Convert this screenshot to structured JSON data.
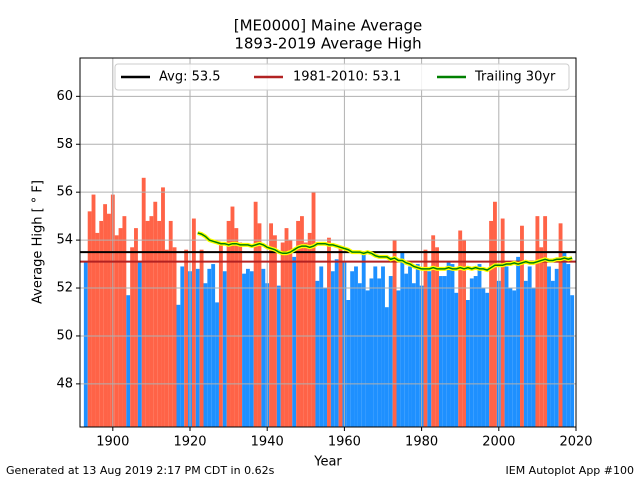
{
  "chart_data": {
    "type": "bar",
    "title": "[ME0000] Maine Average",
    "subtitle": "1893-2019 Average High",
    "ylabel": "Average High [ ° F]",
    "xlabel": "Year",
    "footer_left": "Generated at 13 Aug 2019 2:17 PM CDT in 0.62s",
    "footer_right": "IEM Autoplot App #100",
    "xlim": [
      1891.5,
      2020
    ],
    "xticks": [
      1900,
      1920,
      1940,
      1960,
      1980,
      2000,
      2020
    ],
    "ylim": [
      46.2,
      61.6
    ],
    "yticks": [
      48,
      50,
      52,
      54,
      56,
      58,
      60
    ],
    "grid": true,
    "legend": "upper center",
    "above_color": "#ff6347",
    "below_color": "#1e90ff",
    "x": [
      1893,
      1894,
      1895,
      1896,
      1897,
      1898,
      1899,
      1900,
      1901,
      1902,
      1903,
      1904,
      1905,
      1906,
      1907,
      1908,
      1909,
      1910,
      1911,
      1912,
      1913,
      1914,
      1915,
      1916,
      1917,
      1918,
      1919,
      1920,
      1921,
      1922,
      1923,
      1924,
      1925,
      1926,
      1927,
      1928,
      1929,
      1930,
      1931,
      1932,
      1933,
      1934,
      1935,
      1936,
      1937,
      1938,
      1939,
      1940,
      1941,
      1942,
      1943,
      1944,
      1945,
      1946,
      1947,
      1948,
      1949,
      1950,
      1951,
      1952,
      1953,
      1954,
      1955,
      1956,
      1957,
      1958,
      1959,
      1960,
      1961,
      1962,
      1963,
      1964,
      1965,
      1966,
      1967,
      1968,
      1969,
      1970,
      1971,
      1972,
      1973,
      1974,
      1975,
      1976,
      1977,
      1978,
      1979,
      1980,
      1981,
      1982,
      1983,
      1984,
      1985,
      1986,
      1987,
      1988,
      1989,
      1990,
      1991,
      1992,
      1993,
      1994,
      1995,
      1996,
      1997,
      1998,
      1999,
      2000,
      2001,
      2002,
      2003,
      2004,
      2005,
      2006,
      2007,
      2008,
      2009,
      2010,
      2011,
      2012,
      2013,
      2014,
      2015,
      2016,
      2017,
      2018,
      2019
    ],
    "values": [
      53.1,
      55.2,
      55.9,
      54.3,
      54.8,
      55.5,
      55.1,
      55.9,
      54.2,
      54.5,
      55.0,
      51.7,
      53.7,
      54.5,
      53.1,
      56.6,
      54.8,
      55.0,
      55.6,
      54.8,
      56.2,
      53.6,
      54.8,
      53.7,
      51.3,
      52.9,
      53.6,
      52.7,
      54.9,
      52.8,
      53.6,
      52.2,
      52.8,
      53.0,
      51.4,
      53.9,
      52.7,
      54.8,
      55.4,
      54.5,
      53.9,
      52.6,
      52.8,
      52.7,
      55.6,
      54.7,
      52.8,
      52.2,
      54.7,
      54.2,
      52.1,
      53.9,
      54.5,
      54.0,
      53.3,
      54.8,
      55.0,
      53.9,
      54.3,
      56.0,
      52.3,
      52.9,
      52.0,
      54.1,
      52.7,
      53.2,
      53.7,
      53.1,
      51.5,
      52.7,
      52.9,
      52.2,
      53.4,
      51.9,
      52.4,
      52.9,
      52.4,
      52.9,
      51.2,
      52.5,
      54.0,
      51.9,
      53.5,
      52.6,
      52.9,
      52.2,
      53.0,
      52.1,
      53.6,
      52.7,
      54.2,
      53.7,
      52.5,
      52.5,
      53.1,
      53.0,
      51.8,
      54.4,
      54.0,
      51.5,
      52.4,
      52.5,
      53.0,
      52.0,
      51.8,
      54.8,
      55.6,
      52.3,
      54.9,
      52.9,
      52.0,
      51.9,
      53.3,
      54.6,
      52.3,
      52.9,
      52.0,
      55.0,
      53.7,
      55.0,
      52.9,
      52.3,
      52.8,
      54.7,
      53.5,
      53.0,
      51.7
    ],
    "lines": [
      {
        "name": "Avg: 53.5",
        "value": 53.5,
        "color": "#000000"
      },
      {
        "name": "1981-2010: 53.1",
        "value": 53.1,
        "color": "#b22222"
      }
    ],
    "trailing": {
      "name": "Trailing 30yr",
      "color": "#008000",
      "outline": "#ffff00",
      "x": [
        1922,
        1923,
        1924,
        1925,
        1926,
        1927,
        1928,
        1929,
        1930,
        1931,
        1932,
        1933,
        1934,
        1935,
        1936,
        1937,
        1938,
        1939,
        1940,
        1941,
        1942,
        1943,
        1944,
        1945,
        1946,
        1947,
        1948,
        1949,
        1950,
        1951,
        1952,
        1953,
        1954,
        1955,
        1956,
        1957,
        1958,
        1959,
        1960,
        1961,
        1962,
        1963,
        1964,
        1965,
        1966,
        1967,
        1968,
        1969,
        1970,
        1971,
        1972,
        1973,
        1974,
        1975,
        1976,
        1977,
        1978,
        1979,
        1980,
        1981,
        1982,
        1983,
        1984,
        1985,
        1986,
        1987,
        1988,
        1989,
        1990,
        1991,
        1992,
        1993,
        1994,
        1995,
        1996,
        1997,
        1998,
        1999,
        2000,
        2001,
        2002,
        2003,
        2004,
        2005,
        2006,
        2007,
        2008,
        2009,
        2010,
        2011,
        2012,
        2013,
        2014,
        2015,
        2016,
        2017,
        2018,
        2019
      ],
      "values": [
        54.3,
        54.25,
        54.15,
        54.0,
        53.95,
        53.9,
        53.85,
        53.85,
        53.8,
        53.85,
        53.85,
        53.8,
        53.8,
        53.8,
        53.75,
        53.8,
        53.85,
        53.8,
        53.7,
        53.65,
        53.6,
        53.5,
        53.45,
        53.45,
        53.5,
        53.6,
        53.7,
        53.75,
        53.75,
        53.7,
        53.75,
        53.85,
        53.85,
        53.85,
        53.8,
        53.8,
        53.75,
        53.7,
        53.65,
        53.6,
        53.5,
        53.5,
        53.5,
        53.45,
        53.5,
        53.45,
        53.35,
        53.3,
        53.3,
        53.3,
        53.2,
        53.25,
        53.15,
        53.15,
        53.05,
        53.0,
        52.9,
        52.85,
        52.8,
        52.8,
        52.8,
        52.85,
        52.8,
        52.8,
        52.8,
        52.85,
        52.8,
        52.8,
        52.85,
        52.8,
        52.85,
        52.8,
        52.85,
        52.8,
        52.8,
        52.75,
        52.85,
        52.95,
        52.95,
        52.95,
        53.0,
        53.0,
        53.05,
        53.0,
        53.05,
        53.1,
        53.05,
        53.05,
        53.1,
        53.15,
        53.2,
        53.15,
        53.15,
        53.2,
        53.2,
        53.25,
        53.2,
        53.25
      ]
    }
  }
}
